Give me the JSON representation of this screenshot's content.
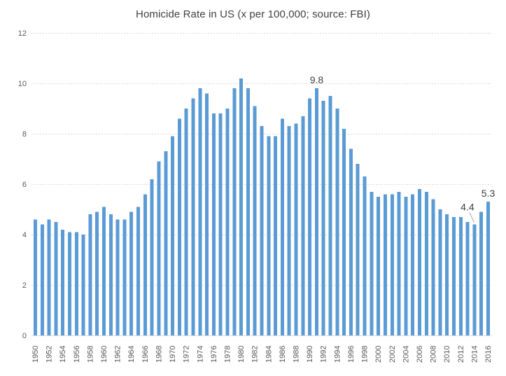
{
  "chart_data": {
    "type": "bar",
    "title": "Homicide Rate in US (x per 100,000; source: FBI)",
    "xlabel": "",
    "ylabel": "",
    "ylim": [
      0,
      12
    ],
    "yticks": [
      0,
      2,
      4,
      6,
      8,
      10,
      12
    ],
    "xtick_label_step": 2,
    "grid": "horizontal-dashed",
    "legend": "none",
    "categories": [
      "1950",
      "1951",
      "1952",
      "1953",
      "1954",
      "1955",
      "1956",
      "1957",
      "1958",
      "1959",
      "1960",
      "1961",
      "1962",
      "1963",
      "1964",
      "1965",
      "1966",
      "1967",
      "1968",
      "1969",
      "1970",
      "1971",
      "1972",
      "1973",
      "1974",
      "1975",
      "1976",
      "1977",
      "1978",
      "1979",
      "1980",
      "1981",
      "1982",
      "1983",
      "1984",
      "1985",
      "1986",
      "1987",
      "1988",
      "1989",
      "1990",
      "1991",
      "1992",
      "1993",
      "1994",
      "1995",
      "1996",
      "1997",
      "1998",
      "1999",
      "2000",
      "2001",
      "2002",
      "2003",
      "2004",
      "2005",
      "2006",
      "2007",
      "2008",
      "2009",
      "2010",
      "2011",
      "2012",
      "2013",
      "2014",
      "2015",
      "2016"
    ],
    "values": [
      4.6,
      4.4,
      4.6,
      4.5,
      4.2,
      4.1,
      4.1,
      4.0,
      4.8,
      4.9,
      5.1,
      4.8,
      4.6,
      4.6,
      4.9,
      5.1,
      5.6,
      6.2,
      6.9,
      7.3,
      7.9,
      8.6,
      9.0,
      9.4,
      9.8,
      9.6,
      8.8,
      8.8,
      9.0,
      9.8,
      10.2,
      9.8,
      9.1,
      8.3,
      7.9,
      7.9,
      8.6,
      8.3,
      8.4,
      8.7,
      9.4,
      9.8,
      9.3,
      9.5,
      9.0,
      8.2,
      7.4,
      6.8,
      6.3,
      5.7,
      5.5,
      5.6,
      5.6,
      5.7,
      5.5,
      5.6,
      5.8,
      5.7,
      5.4,
      5.0,
      4.8,
      4.7,
      4.7,
      4.5,
      4.4,
      4.9,
      5.3
    ],
    "data_labels": [
      {
        "year": "1991",
        "text": "9.8",
        "style": "above"
      },
      {
        "year": "2014",
        "text": "4.4",
        "style": "callout-left"
      },
      {
        "year": "2016",
        "text": "5.3",
        "style": "above"
      }
    ],
    "colors": {
      "bar": "#5B9BD5",
      "gridline": "#D9D9D9",
      "axis_line": "#D9D9D9",
      "tick_label": "#595959",
      "title": "#404040",
      "data_label": "#404040",
      "leader_line": "#A6A6A6",
      "background": "#FFFFFF"
    }
  }
}
